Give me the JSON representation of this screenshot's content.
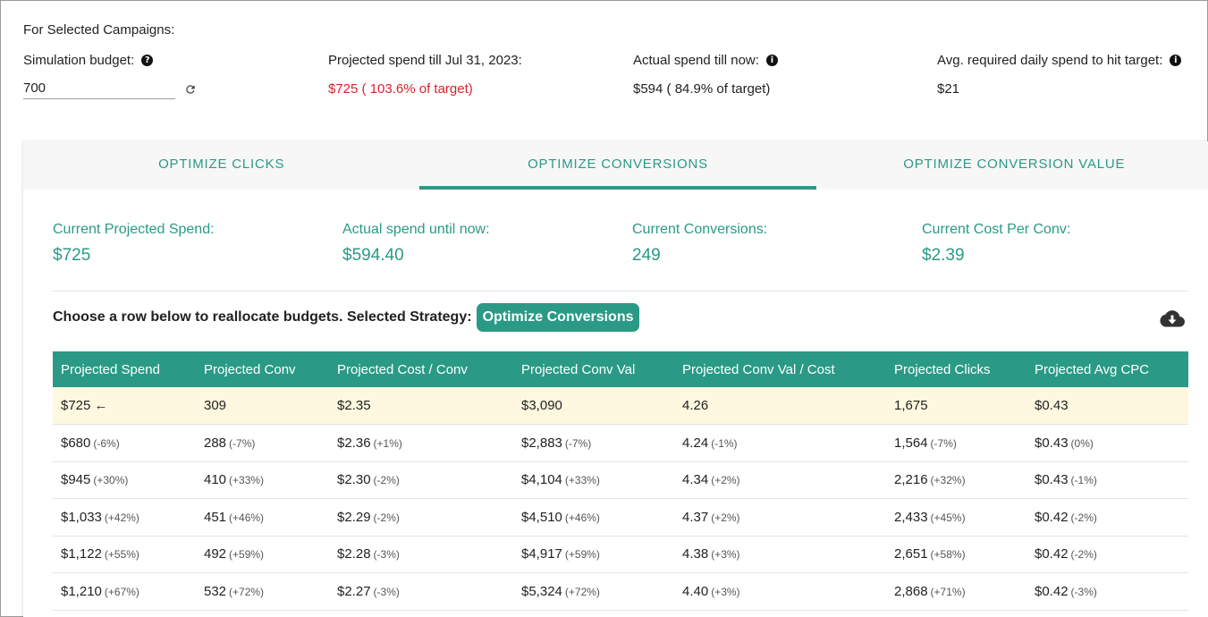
{
  "header": {
    "section_label": "For Selected Campaigns:",
    "simulation_budget_label": "Simulation budget:",
    "simulation_budget_value": "700",
    "projected_spend_label": "Projected spend till Jul 31, 2023:",
    "projected_spend_value": "$725 ( 103.6% of target)",
    "actual_spend_label": "Actual spend till now:",
    "actual_spend_value": "$594 ( 84.9% of target)",
    "avg_required_label": "Avg. required daily spend to hit target:",
    "avg_required_value": "$21"
  },
  "tabs": [
    {
      "label": "OPTIMIZE CLICKS"
    },
    {
      "label": "OPTIMIZE CONVERSIONS"
    },
    {
      "label": "OPTIMIZE CONVERSION VALUE"
    }
  ],
  "metrics": [
    {
      "label": "Current Projected Spend:",
      "value": "$725"
    },
    {
      "label": "Actual spend until now:",
      "value": "$594.40"
    },
    {
      "label": "Current Conversions:",
      "value": "249"
    },
    {
      "label": "Current Cost Per Conv:",
      "value": "$2.39"
    }
  ],
  "strategy": {
    "text": "Choose a row below to reallocate budgets. Selected Strategy:",
    "badge": "Optimize Conversions"
  },
  "table": {
    "headers": [
      "Projected Spend",
      "Projected Conv",
      "Projected Cost / Conv",
      "Projected Conv Val",
      "Projected Conv Val / Cost",
      "Projected Clicks",
      "Projected Avg CPC"
    ],
    "rows": [
      [
        [
          "$725 ←",
          ""
        ],
        [
          "309",
          ""
        ],
        [
          "$2.35",
          ""
        ],
        [
          "$3,090",
          ""
        ],
        [
          "4.26",
          ""
        ],
        [
          "1,675",
          ""
        ],
        [
          "$0.43",
          ""
        ]
      ],
      [
        [
          "$680",
          "(-6%)"
        ],
        [
          "288",
          "(-7%)"
        ],
        [
          "$2.36",
          "(+1%)"
        ],
        [
          "$2,883",
          "(-7%)"
        ],
        [
          "4.24",
          "(-1%)"
        ],
        [
          "1,564",
          "(-7%)"
        ],
        [
          "$0.43",
          "(0%)"
        ]
      ],
      [
        [
          "$945",
          "(+30%)"
        ],
        [
          "410",
          "(+33%)"
        ],
        [
          "$2.30",
          "(-2%)"
        ],
        [
          "$4,104",
          "(+33%)"
        ],
        [
          "4.34",
          "(+2%)"
        ],
        [
          "2,216",
          "(+32%)"
        ],
        [
          "$0.43",
          "(-1%)"
        ]
      ],
      [
        [
          "$1,033",
          "(+42%)"
        ],
        [
          "451",
          "(+46%)"
        ],
        [
          "$2.29",
          "(-2%)"
        ],
        [
          "$4,510",
          "(+46%)"
        ],
        [
          "4.37",
          "(+2%)"
        ],
        [
          "2,433",
          "(+45%)"
        ],
        [
          "$0.42",
          "(-2%)"
        ]
      ],
      [
        [
          "$1,122",
          "(+55%)"
        ],
        [
          "492",
          "(+59%)"
        ],
        [
          "$2.28",
          "(-3%)"
        ],
        [
          "$4,917",
          "(+59%)"
        ],
        [
          "4.38",
          "(+3%)"
        ],
        [
          "2,651",
          "(+58%)"
        ],
        [
          "$0.42",
          "(-2%)"
        ]
      ],
      [
        [
          "$1,210",
          "(+67%)"
        ],
        [
          "532",
          "(+72%)"
        ],
        [
          "$2.27",
          "(-3%)"
        ],
        [
          "$5,324",
          "(+72%)"
        ],
        [
          "4.40",
          "(+3%)"
        ],
        [
          "2,868",
          "(+71%)"
        ],
        [
          "$0.42",
          "(-3%)"
        ]
      ]
    ]
  },
  "colors": {
    "accent": "#2a9a86",
    "warning": "#d9232d",
    "current_row": "#fdf8df"
  },
  "icons": [
    "help-icon",
    "refresh-icon",
    "info-icon",
    "cloud-download-icon"
  ]
}
